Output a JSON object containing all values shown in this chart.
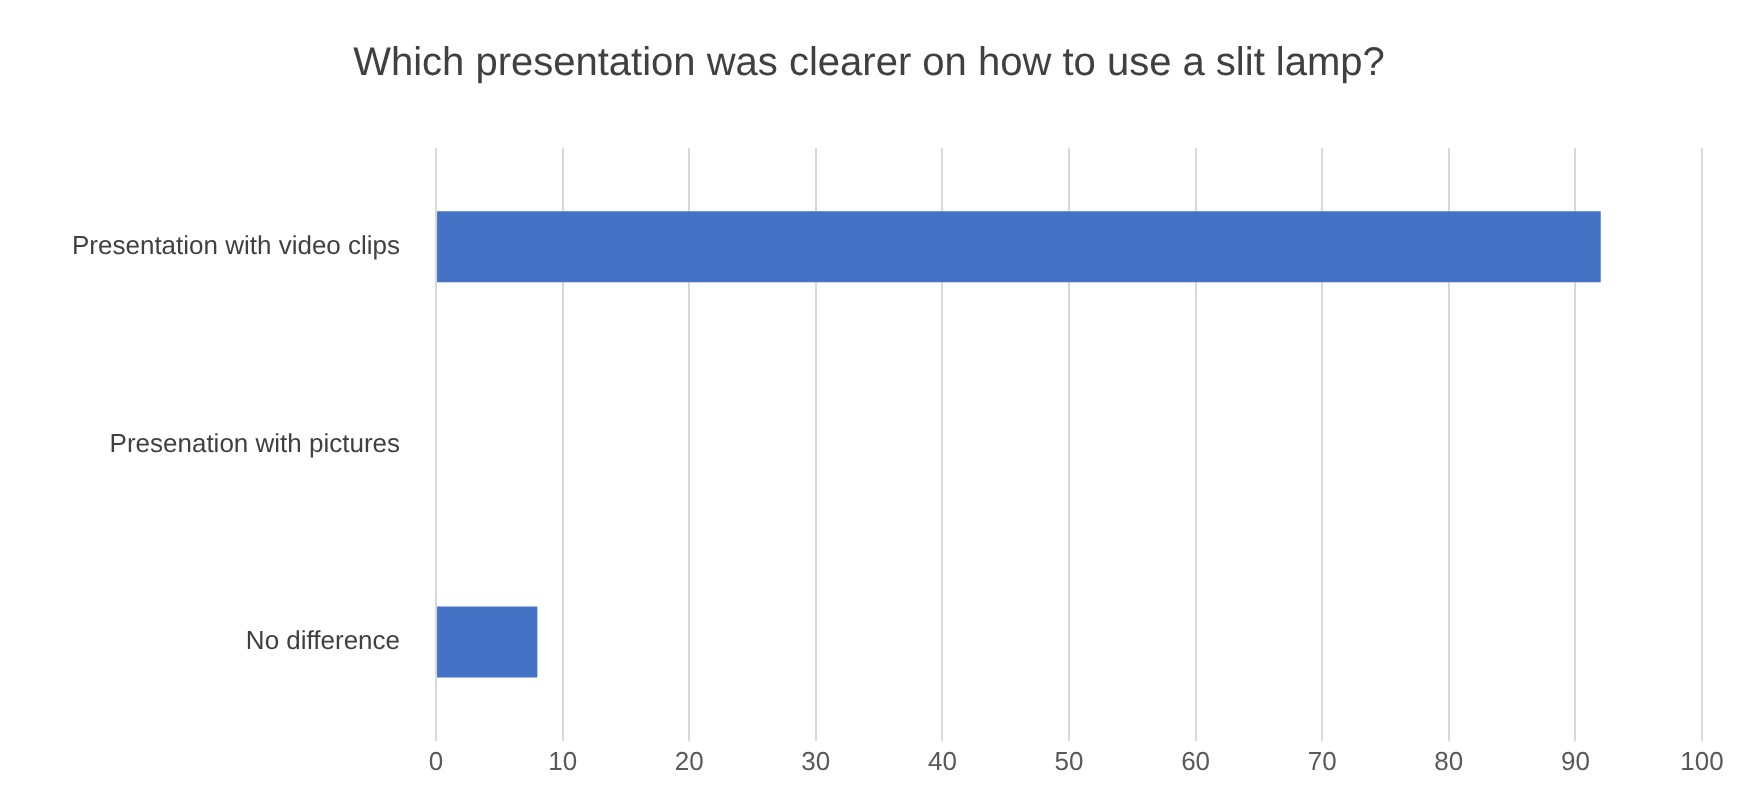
{
  "chart_data": {
    "type": "bar",
    "orientation": "horizontal",
    "title": "Which presentation was clearer on how to use a slit lamp?",
    "categories": [
      "Presentation with video clips",
      "Presenation with pictures",
      "No difference"
    ],
    "values": [
      92,
      0,
      8
    ],
    "color": "#4472c4",
    "xlim": [
      0,
      100
    ],
    "xticks": [
      0,
      10,
      20,
      30,
      40,
      50,
      60,
      70,
      80,
      90,
      100
    ],
    "grid": "x",
    "legend": false
  }
}
